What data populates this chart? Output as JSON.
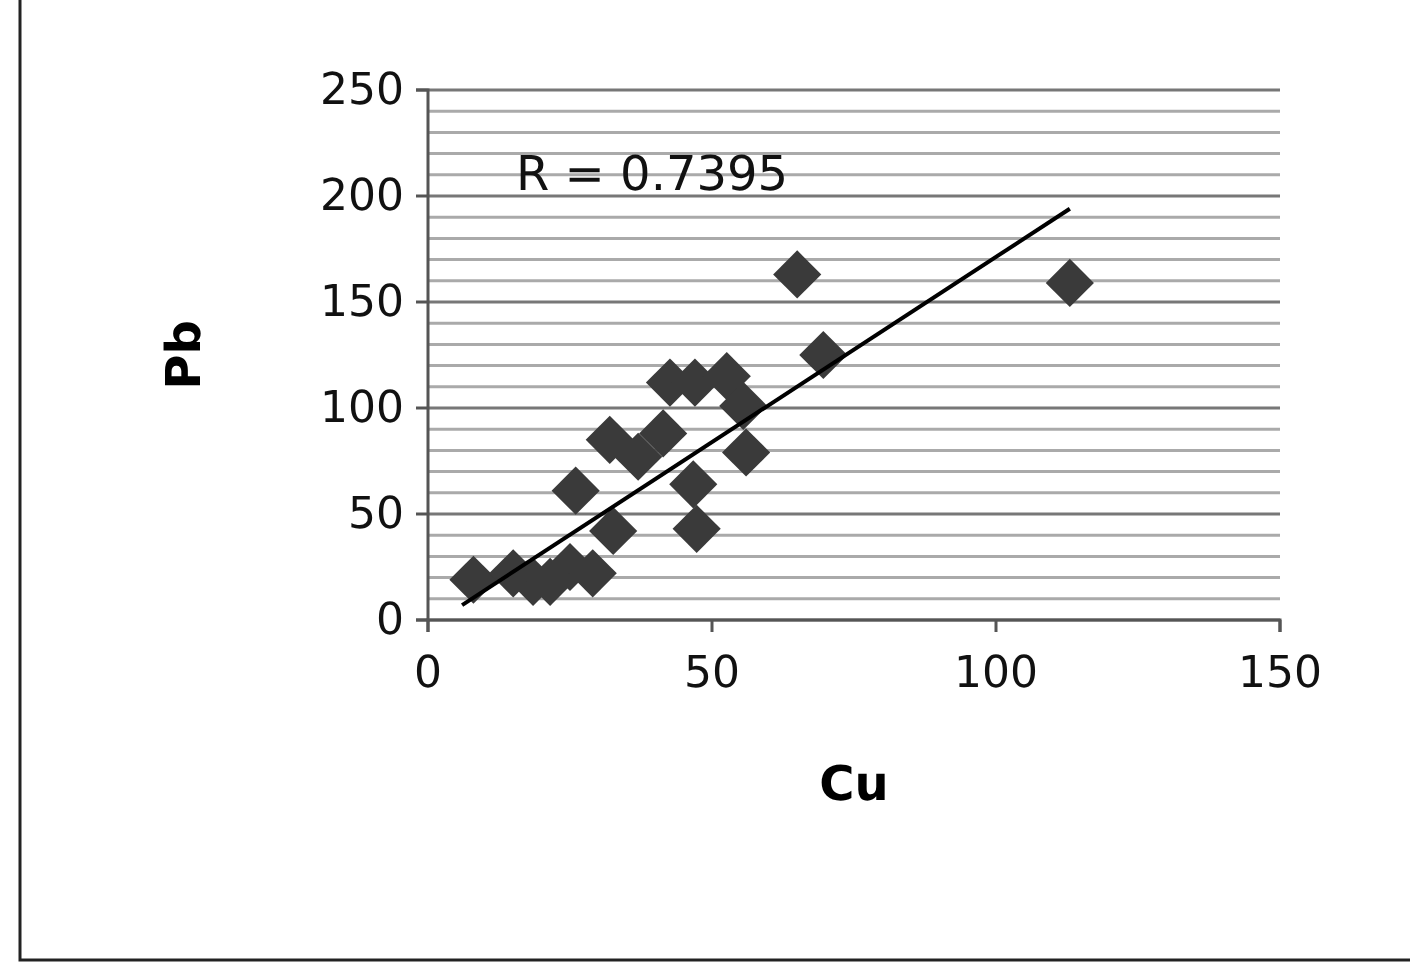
{
  "chart_data": {
    "type": "scatter",
    "xlabel": "Cu",
    "ylabel": "Pb",
    "grid": "y",
    "xlim": [
      0,
      150
    ],
    "xticks": [
      0,
      50,
      100,
      150
    ],
    "ylim": [
      0,
      250
    ],
    "yticks": [
      0,
      {
        "value": 10,
        "label": null
      },
      {
        "value": 20,
        "label": null
      },
      {
        "value": 30,
        "label": null
      },
      {
        "value": 40,
        "label": null
      },
      50,
      {
        "value": 60,
        "label": null
      },
      {
        "value": 70,
        "label": null
      },
      {
        "value": 80,
        "label": null
      },
      {
        "value": 90,
        "label": null
      },
      100,
      {
        "value": 110,
        "label": null
      },
      {
        "value": 120,
        "label": null
      },
      {
        "value": 130,
        "label": null
      },
      {
        "value": 140,
        "label": null
      },
      150,
      {
        "value": 160,
        "label": null
      },
      {
        "value": 170,
        "label": null
      },
      {
        "value": 180,
        "label": null
      },
      {
        "value": 190,
        "label": null
      },
      200,
      {
        "value": 210,
        "label": null
      },
      {
        "value": 220,
        "label": null
      },
      {
        "value": 230,
        "label": null
      },
      {
        "value": 240,
        "label": null
      },
      250
    ],
    "annotations": [
      "R = 0.7395"
    ],
    "series": [
      {
        "marker": "diamond",
        "color": "#3a3a3a",
        "x": [
          8,
          15,
          18.5,
          21.5,
          25,
          29,
          26,
          32.6,
          32,
          37,
          41.4,
          42.6,
          47,
          52.6,
          55.5,
          56,
          46.7,
          47.3,
          69.6,
          65,
          113
        ],
        "values": [
          19,
          22,
          18,
          18,
          25,
          22,
          61,
          42,
          85,
          77,
          88,
          112,
          112,
          115,
          101,
          79,
          64,
          43,
          125,
          163,
          159
        ]
      },
      {
        "type": "line",
        "color": "#000000",
        "x": [
          6,
          113
        ],
        "values": [
          7,
          194
        ]
      }
    ]
  }
}
